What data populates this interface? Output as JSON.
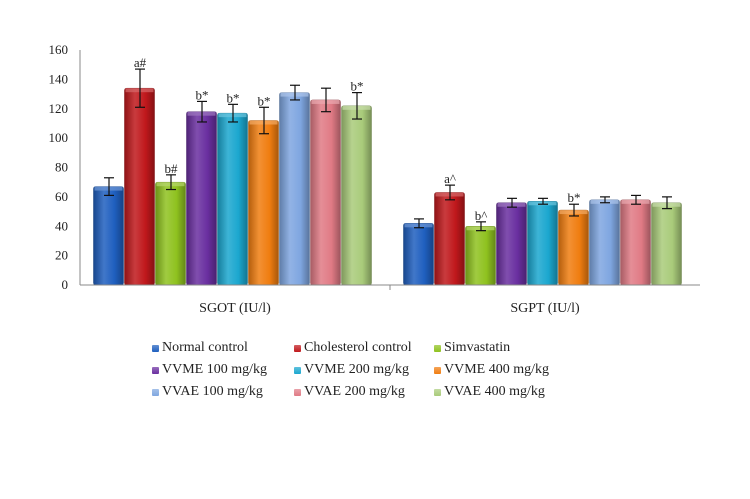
{
  "chart_data": {
    "type": "bar",
    "title": "",
    "xlabel": "",
    "ylabel": "",
    "ylim": [
      0,
      160
    ],
    "yticks": [
      0,
      20,
      40,
      60,
      80,
      100,
      120,
      140,
      160
    ],
    "grid": false,
    "legend_position": "bottom",
    "categories": [
      "SGOT (IU/l)",
      "SGPT (IU/l)"
    ],
    "series": [
      {
        "name": "Normal control",
        "color": "#1f5fbf",
        "values": [
          67,
          42
        ],
        "errors": [
          6,
          3
        ],
        "annotations": [
          "",
          ""
        ]
      },
      {
        "name": "Cholesterol  control",
        "color": "#c0181c",
        "values": [
          134,
          63
        ],
        "errors": [
          13,
          5
        ],
        "annotations": [
          "a#",
          "a^"
        ]
      },
      {
        "name": "Simvastatin",
        "color": "#8fc21f",
        "values": [
          70,
          40
        ],
        "errors": [
          5,
          3
        ],
        "annotations": [
          "b#",
          "b^"
        ]
      },
      {
        "name": "VVME 100 mg/kg",
        "color": "#6a2fa0",
        "values": [
          118,
          56
        ],
        "errors": [
          7,
          3
        ],
        "annotations": [
          "b*",
          ""
        ]
      },
      {
        "name": "VVME 200 mg/kg",
        "color": "#1ba7cf",
        "values": [
          117,
          57
        ],
        "errors": [
          6,
          2
        ],
        "annotations": [
          "b*",
          ""
        ]
      },
      {
        "name": "VVME 400 mg/kg",
        "color": "#f07d10",
        "values": [
          112,
          51
        ],
        "errors": [
          9,
          4
        ],
        "annotations": [
          "b*",
          "b*"
        ]
      },
      {
        "name": "VVAE 100 mg/kg",
        "color": "#7fa6e0",
        "values": [
          131,
          58
        ],
        "errors": [
          5,
          2
        ],
        "annotations": [
          "",
          ""
        ]
      },
      {
        "name": "VVAE 200 mg/kg",
        "color": "#e07a85",
        "values": [
          126,
          58
        ],
        "errors": [
          8,
          3
        ],
        "annotations": [
          "",
          ""
        ]
      },
      {
        "name": "VVAE 400 mg/kg",
        "color": "#a9cb7a",
        "values": [
          122,
          56
        ],
        "errors": [
          9,
          4
        ],
        "annotations": [
          "b*",
          ""
        ]
      }
    ]
  }
}
